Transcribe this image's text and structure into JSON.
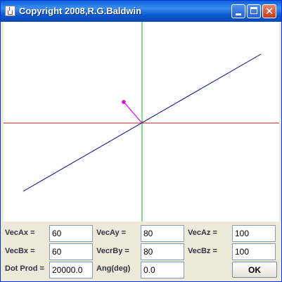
{
  "window": {
    "title": "Copyright 2008,R.G.Baldwin"
  },
  "icons": {
    "app": "java-cup-icon",
    "minimize": "minimize-icon",
    "maximize": "maximize-icon",
    "close": "close-icon"
  },
  "colors": {
    "x_axis": "#b22222",
    "y_axis": "#00c000",
    "axis_line_3d": "#00008b",
    "projection_vector": "#e600e6"
  },
  "form": {
    "row1": [
      {
        "label": "VecAx =",
        "value": "60"
      },
      {
        "label": "VecAy =",
        "value": "80"
      },
      {
        "label": "VecAz =",
        "value": "100"
      }
    ],
    "row2": [
      {
        "label": "VecBx =",
        "value": "60"
      },
      {
        "label": "VecrBy =",
        "value": "80"
      },
      {
        "label": "VecBz =",
        "value": "100"
      }
    ],
    "row3": [
      {
        "label": "Dot Prod =",
        "value": "20000.0"
      },
      {
        "label": "Ang(deg)",
        "value": "0.0"
      }
    ],
    "ok_label": "OK"
  }
}
